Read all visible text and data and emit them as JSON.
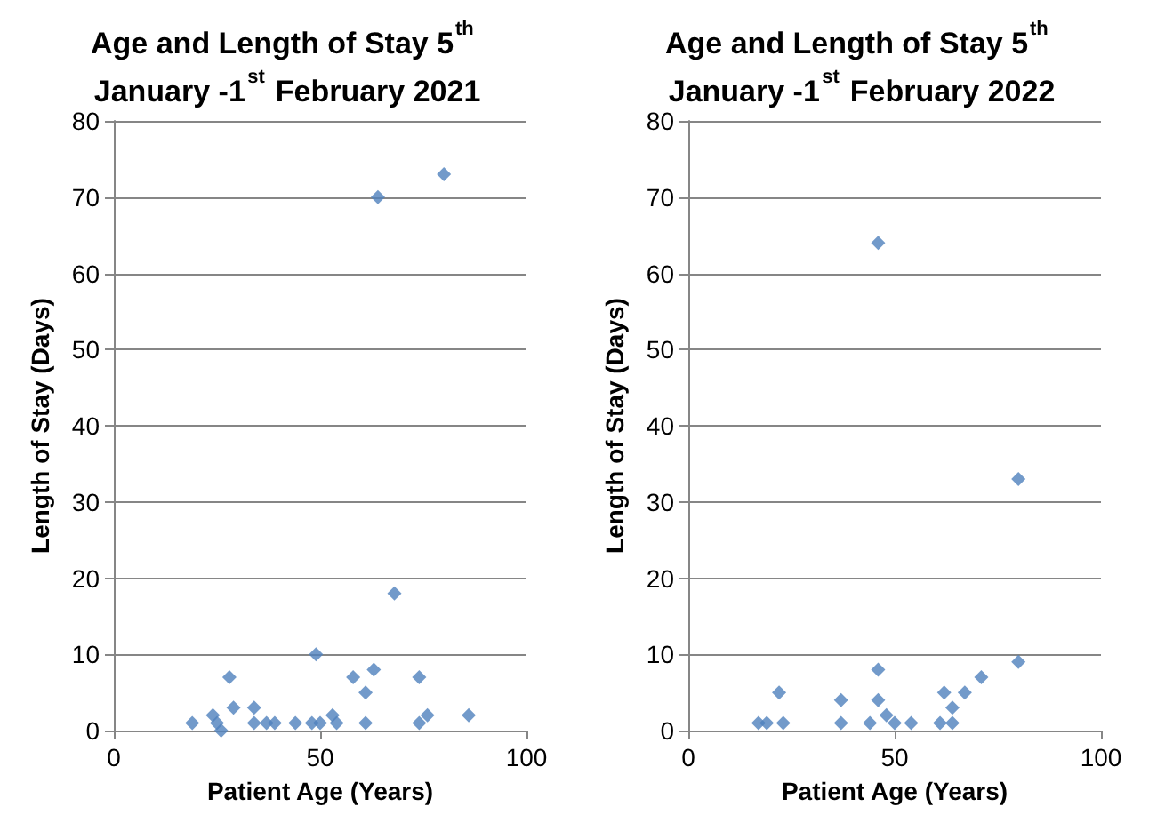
{
  "chart_data": [
    {
      "type": "scatter",
      "title": "Age and Length of Stay 5$^{th}$ January -1$^{st}$ February 2021",
      "xlabel": "Patient Age (Years)",
      "ylabel": "Length of Stay (Days)",
      "xlim": [
        0,
        100
      ],
      "xticks": [
        0,
        50,
        100
      ],
      "ylim": [
        0,
        80
      ],
      "yticks": [
        0,
        10,
        20,
        30,
        40,
        50,
        60,
        70,
        80
      ],
      "grid": "y",
      "marker": "diamond",
      "series": [
        {
          "color": "#4f81bd",
          "x": [
            19,
            24,
            25,
            26,
            28,
            29,
            34,
            34,
            37,
            39,
            44,
            48,
            49,
            50,
            53,
            54,
            58,
            61,
            61,
            63,
            64,
            68,
            74,
            74,
            76,
            80,
            86
          ],
          "values": [
            1,
            2,
            1,
            0,
            7,
            3,
            3,
            1,
            1,
            1,
            1,
            1,
            10,
            1,
            2,
            1,
            7,
            5,
            1,
            8,
            70,
            18,
            7,
            1,
            2,
            73,
            2
          ]
        }
      ]
    },
    {
      "type": "scatter",
      "title": "Age and Length of Stay 5$^{th}$ January -1$^{st}$ February 2022",
      "xlabel": "Patient Age (Years)",
      "ylabel": "Length of Stay (Days)",
      "xlim": [
        0,
        100
      ],
      "xticks": [
        0,
        50,
        100
      ],
      "ylim": [
        0,
        80
      ],
      "yticks": [
        0,
        10,
        20,
        30,
        40,
        50,
        60,
        70,
        80
      ],
      "grid": "y",
      "marker": "diamond",
      "series": [
        {
          "color": "#4f81bd",
          "x": [
            17,
            19,
            22,
            23,
            37,
            37,
            44,
            46,
            46,
            46,
            48,
            50,
            54,
            61,
            62,
            64,
            64,
            67,
            71,
            80,
            80
          ],
          "values": [
            1,
            1,
            5,
            1,
            4,
            1,
            1,
            8,
            4,
            64,
            2,
            1,
            1,
            1,
            5,
            3,
            1,
            5,
            7,
            9,
            33
          ]
        }
      ]
    }
  ]
}
